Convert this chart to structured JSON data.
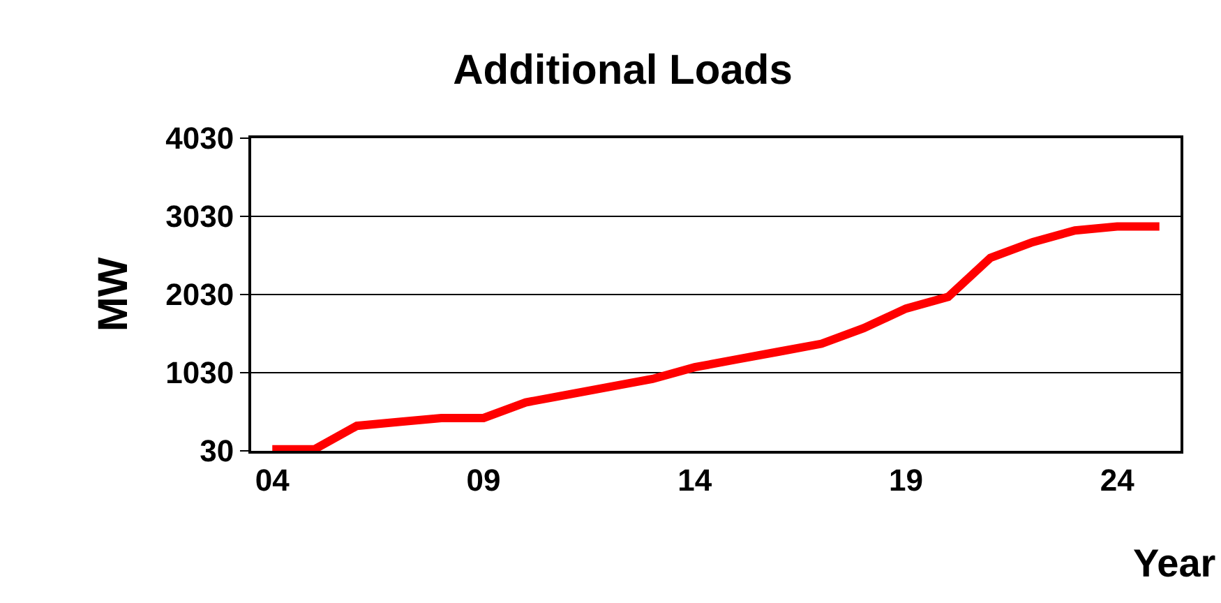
{
  "chart_data": {
    "type": "line",
    "title": "Additional Loads",
    "xlabel": "Year",
    "ylabel": "MW",
    "categories": [
      "04",
      null,
      null,
      null,
      null,
      "09",
      null,
      null,
      null,
      null,
      "14",
      null,
      null,
      null,
      null,
      "19",
      null,
      null,
      null,
      null,
      "24",
      null
    ],
    "series": [
      {
        "color": "#ff0000",
        "values": [
          50,
          50,
          350,
          400,
          450,
          450,
          650,
          750,
          850,
          950,
          1100,
          1200,
          1300,
          1400,
          1600,
          1850,
          2000,
          2500,
          2700,
          2850,
          2900,
          2900
        ]
      }
    ],
    "ylim": [
      30,
      4030
    ],
    "yticks": [
      30,
      1030,
      2030,
      3030,
      4030
    ],
    "grid": "y",
    "marker": "none",
    "line_style": "solid"
  }
}
